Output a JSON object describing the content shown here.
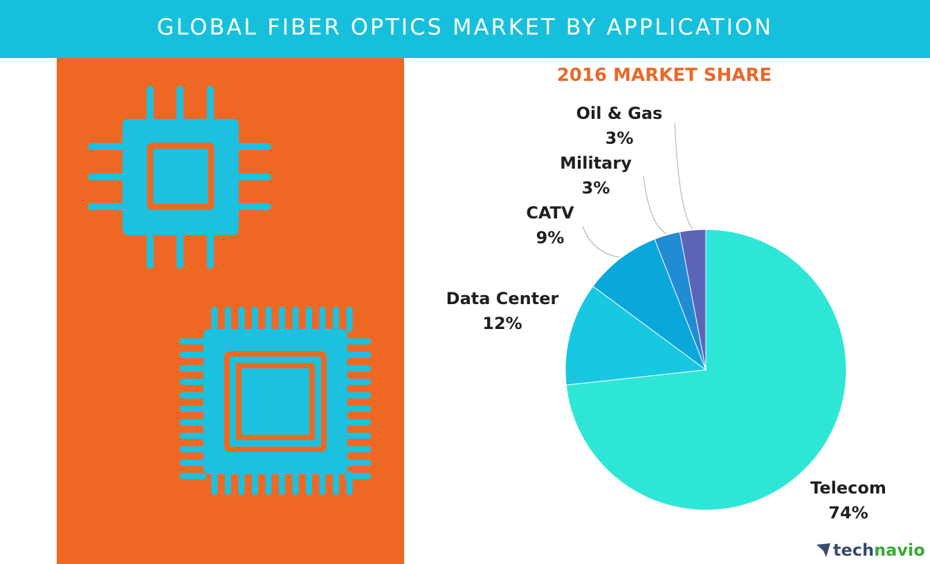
{
  "banner": {
    "title": "GLOBAL FIBER OPTICS MARKET BY APPLICATION"
  },
  "colors": {
    "banner_bg": "#16c0dc",
    "panel_bg": "#ee6824",
    "chip": "#1bc1df",
    "accent_title": "#e8692a",
    "logo_tech": "#3a4a6b",
    "logo_navio": "#3aaa35"
  },
  "chart_data": {
    "type": "pie",
    "title": "2016 MARKET SHARE",
    "slices": [
      {
        "label": "Telecom",
        "value": 74,
        "display": "74%",
        "color": "#2ee6d6"
      },
      {
        "label": "Data Center",
        "value": 12,
        "display": "12%",
        "color": "#18c7e0"
      },
      {
        "label": "CATV",
        "value": 9,
        "display": "9%",
        "color": "#0aa8da"
      },
      {
        "label": "Military",
        "value": 3,
        "display": "3%",
        "color": "#218bd4"
      },
      {
        "label": "Oil & Gas",
        "value": 3,
        "display": "3%",
        "color": "#5b65b8"
      }
    ]
  },
  "logo": {
    "part1": "tech",
    "part2": "navio",
    "icon": "technavio-arrow-icon"
  }
}
